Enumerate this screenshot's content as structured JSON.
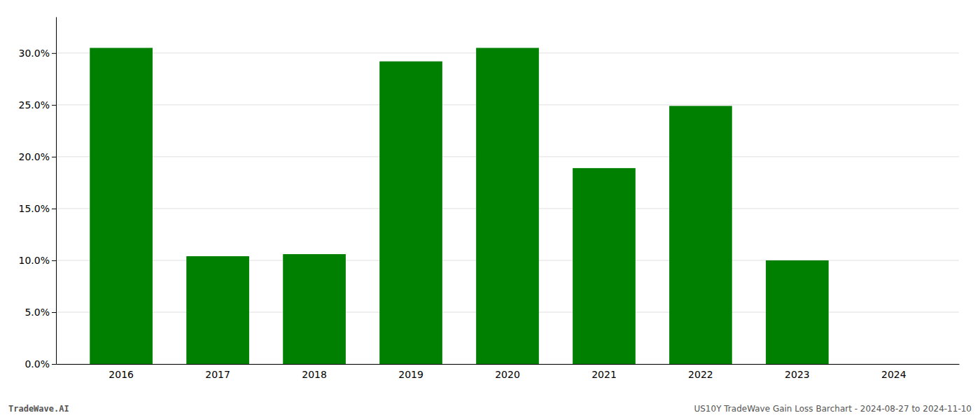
{
  "chart_data": {
    "type": "bar",
    "categories": [
      "2016",
      "2017",
      "2018",
      "2019",
      "2020",
      "2021",
      "2022",
      "2023",
      "2024"
    ],
    "values": [
      0.305,
      0.104,
      0.106,
      0.292,
      0.305,
      0.189,
      0.249,
      0.1,
      0.0
    ],
    "color": "#008000",
    "ylim": [
      0,
      0.335
    ],
    "yticks": [
      {
        "value": 0.0,
        "label": "0.0%"
      },
      {
        "value": 0.05,
        "label": "5.0%"
      },
      {
        "value": 0.1,
        "label": "10.0%"
      },
      {
        "value": 0.15,
        "label": "15.0%"
      },
      {
        "value": 0.2,
        "label": "20.0%"
      },
      {
        "value": 0.25,
        "label": "25.0%"
      },
      {
        "value": 0.3,
        "label": "30.0%"
      }
    ],
    "grid": true,
    "annotations": [
      "TradeWave.AI",
      "US10Y TradeWave Gain Loss Barchart - 2024-08-27 to 2024-11-10"
    ]
  }
}
